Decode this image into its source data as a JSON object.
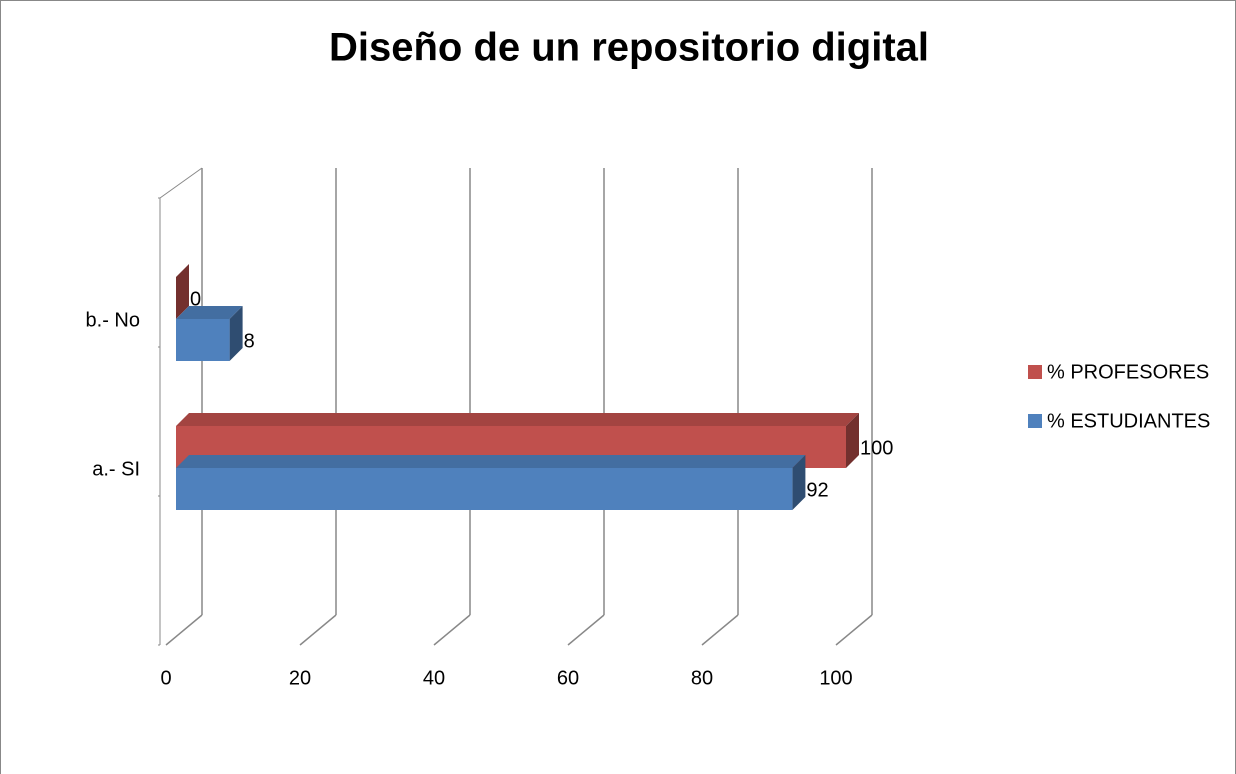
{
  "chart_data": {
    "type": "bar3d",
    "orientation": "horizontal",
    "title": "Diseño de un repositorio digital",
    "categories": [
      "a.- SI",
      "b.- No"
    ],
    "series": [
      {
        "name": "% PROFESORES",
        "color": "#c0504d",
        "values": [
          100,
          0
        ]
      },
      {
        "name": "% ESTUDIANTES",
        "color": "#4f81bd",
        "values": [
          92,
          8
        ]
      }
    ],
    "xlim": [
      0,
      100
    ],
    "xticks": [
      0,
      20,
      40,
      60,
      80,
      100
    ],
    "grid": true,
    "legend": "right"
  }
}
